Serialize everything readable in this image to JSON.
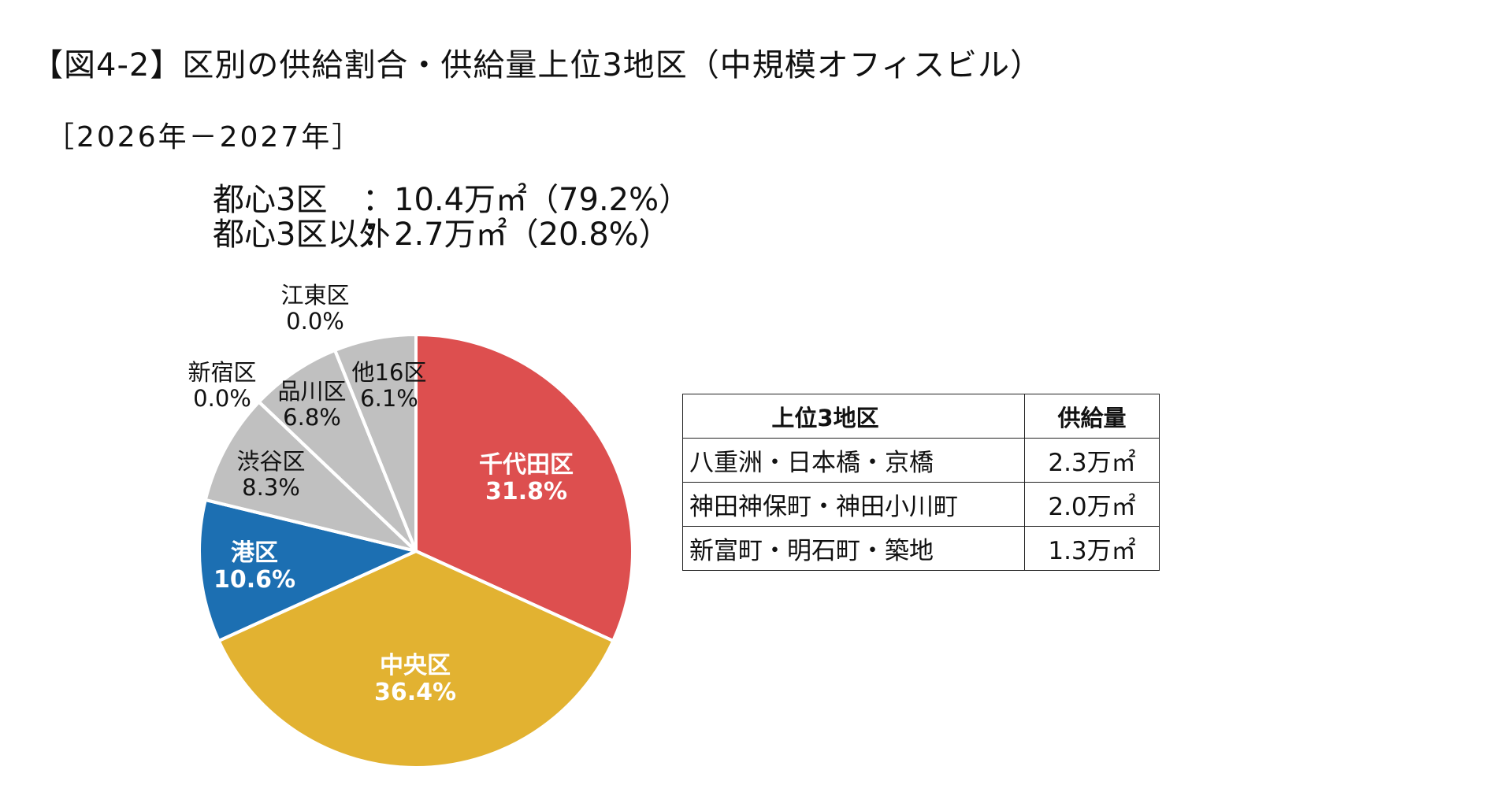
{
  "title": "【図4-2】区別の供給割合・供給量上位3地区（中規模オフィスビル）",
  "period": "［2026年－2027年］",
  "summary": [
    {
      "label": "都心3区",
      "value": "：10.4万㎡（79.2%）"
    },
    {
      "label": "都心3区以外",
      "value": "：2.7万㎡（20.8%）"
    }
  ],
  "chart_data": {
    "type": "pie",
    "start_angle_deg": 0,
    "direction": "clockwise",
    "slices": [
      {
        "name": "千代田区",
        "percent_label": "31.8%",
        "value": 31.8,
        "color": "#dd4f4f",
        "text_color": "#ffffff",
        "bold": true
      },
      {
        "name": "中央区",
        "percent_label": "36.4%",
        "value": 36.4,
        "color": "#e2b231",
        "text_color": "#ffffff",
        "bold": true
      },
      {
        "name": "港区",
        "percent_label": "10.6%",
        "value": 10.6,
        "color": "#1c6fb2",
        "text_color": "#ffffff",
        "bold": true
      },
      {
        "name": "渋谷区",
        "percent_label": "8.3%",
        "value": 8.3,
        "color": "#c0c0c0",
        "text_color": "#111111",
        "bold": false
      },
      {
        "name": "新宿区",
        "percent_label": "0.0%",
        "value": 0.0,
        "color": "#c0c0c0",
        "text_color": "#111111",
        "bold": false
      },
      {
        "name": "品川区",
        "percent_label": "6.8%",
        "value": 6.8,
        "color": "#c0c0c0",
        "text_color": "#111111",
        "bold": false
      },
      {
        "name": "江東区",
        "percent_label": "0.0%",
        "value": 0.0,
        "color": "#c0c0c0",
        "text_color": "#111111",
        "bold": false
      },
      {
        "name": "他16区",
        "percent_label": "6.1%",
        "value": 6.1,
        "color": "#c0c0c0",
        "text_color": "#111111",
        "bold": false
      }
    ]
  },
  "table": {
    "headers": [
      "上位3地区",
      "供給量"
    ],
    "rows": [
      [
        "八重洲・日本橋・京橋",
        "2.3万㎡"
      ],
      [
        "神田神保町・神田小川町",
        "2.0万㎡"
      ],
      [
        "新富町・明石町・築地",
        "1.3万㎡"
      ]
    ]
  }
}
